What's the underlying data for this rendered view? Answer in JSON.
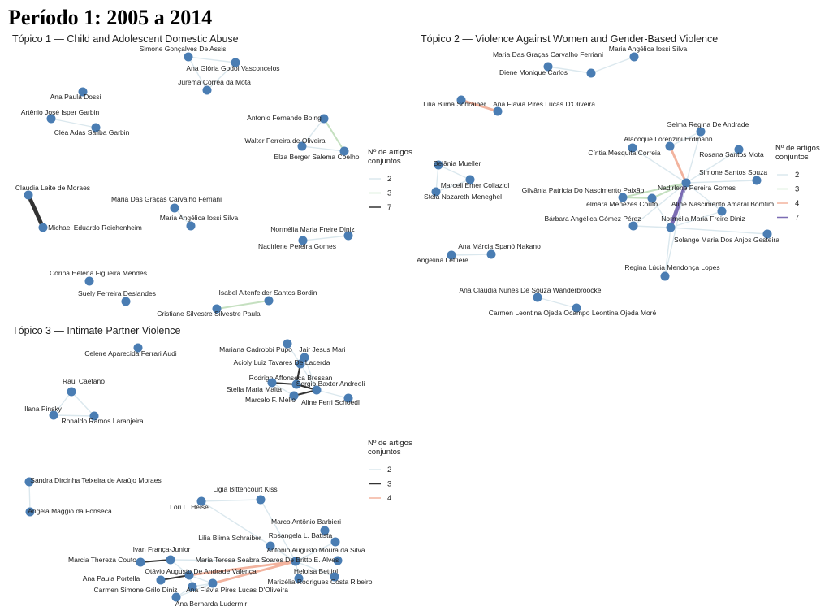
{
  "title": "Período 1: 2005 a 2014",
  "topics": [
    {
      "title": "Tópico 1 — Child and Adolescent Domestic Abuse",
      "nodes": [
        "Simone Gonçalves De Assis",
        "Ana Glória Godoi Vasconcelos",
        "Jurema Corrêa da Mota",
        "Ana Paula Dossi",
        "Artênio José Isper Garbin",
        "Cléa Adas Saliba Garbin",
        "Antonio Fernando Boing",
        "Walter Ferreira de Oliveira",
        "Elza Berger Salema Coelho",
        "Claudia Leite de Moraes",
        "Michael Eduardo Reichenheim",
        "Maria Das Graças Carvalho Ferriani",
        "Maria Angélica Iossi Silva",
        "Normélia Maria Freire Diniz",
        "Nadirlene Pereira Gomes",
        "Corina Helena Figueira Mendes",
        "Suely Ferreira Deslandes",
        "Isabel Altenfelder Santos Bordin",
        "Cristiane Silvestre Silvestre Paula"
      ],
      "legend": {
        "title": "Nº de artigos conjuntos",
        "entries": [
          {
            "value": 2,
            "color": "#dbe8ee"
          },
          {
            "value": 3,
            "color": "#c5e0c0"
          },
          {
            "value": 7,
            "color": "#333333"
          }
        ]
      }
    },
    {
      "title": "Tópico 2 — Violence Against Women and Gender-Based Violence",
      "nodes": [
        "Maria Das Graças Carvalho Ferriani",
        "Maria Angélica Iossi Silva",
        "Diene Monique Carlos",
        "Lilia Blima Schraiber",
        "Ana Flávia Pires Lucas D'Oliveira",
        "Belânia Mueller",
        "Marceli Emer Collaziol",
        "Stela Nazareth Meneghel",
        "Selma Regina De Andrade",
        "Alacoque Lorenzini Erdmann",
        "Cíntia Mesquita Correia",
        "Rosana Santos Mota",
        "Simone Santos Souza",
        "Nadirlene Pereira Gomes",
        "Gilvânia Patrícia Do Nascimento Paixão",
        "Telmara Menezes Couto",
        "Aline Nascimento Amaral Bomfim",
        "Bárbara Angélica Gómez Pérez",
        "Normélia Maria Freire Diniz",
        "Solange Maria Dos Anjos Gesteira",
        "Regina Lúcia Mendonça Lopes",
        "Ana Márcia Spanó Nakano",
        "Angelina Lettiere",
        "Ana Claudia Nunes De Souza Wanderbroocke",
        "Carmen Leontina Ojeda Ocampo Leontina Ojeda Moré"
      ],
      "legend": {
        "title": "Nº de artigos conjuntos",
        "entries": [
          {
            "value": 2,
            "color": "#dbe8ee"
          },
          {
            "value": 3,
            "color": "#c5e0c0"
          },
          {
            "value": 4,
            "color": "#f2b39e"
          },
          {
            "value": 7,
            "color": "#7b6cb3"
          }
        ]
      }
    },
    {
      "title": "Tópico 3 — Intimate Partner Violence",
      "nodes": [
        "Celene Aparecida Ferrari Audi",
        "Mariana Cadrobbi Pupo",
        "Jair Jesus Mari",
        "Acioly Luiz Tavares De Lacerda",
        "Rodrigo Affonseca Bressan",
        "Stella Maria Malta",
        "Sergio Baxter Andreoli",
        "Marcelo F. Mello",
        "Aline Ferri Schoedl",
        "Raúl Caetano",
        "Ilana Pinsky",
        "Ronaldo Ramos Laranjeira",
        "Sandra Dircinha Teixeira de Araújo Moraes",
        "Angela Maggio da Fonseca",
        "Ligia Bittencourt Kiss",
        "Lori L. Heise",
        "Marco Antônio Barbieri",
        "Rosangela L. Batista",
        "Lilia Blima Schraiber",
        "Ivan França-Junior",
        "Antonio Augusto Moura da Silva",
        "Marcia Thereza Couto",
        "Maria Teresa Seabra Soares De Britto E. Alves",
        "Otávio Augusto De Andrade Valença",
        "Heloisa Bettiol",
        "Ana Paula Portella",
        "Marizélia Rodrigues Costa Ribeiro",
        "Carmen Simone Grilo Diniz",
        "Ana Flávia Pires Lucas D'Oliveira",
        "Ana Bernarda Ludermir"
      ],
      "legend": {
        "title": "Nº de artigos conjuntos",
        "entries": [
          {
            "value": 2,
            "color": "#dbe8ee"
          },
          {
            "value": 3,
            "color": "#333333"
          },
          {
            "value": 4,
            "color": "#f2b39e"
          }
        ]
      }
    }
  ]
}
